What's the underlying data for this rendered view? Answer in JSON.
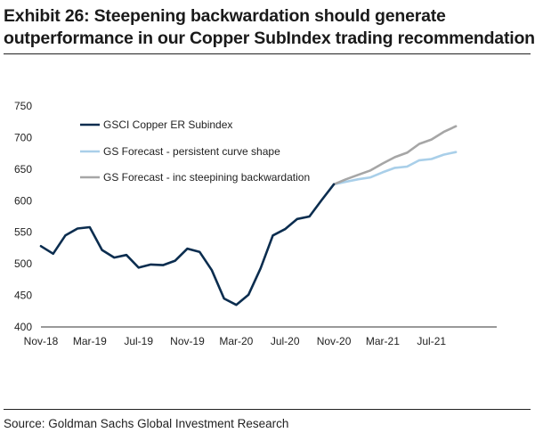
{
  "title": {
    "line1": "Exhibit 26: Steepening backwardation should generate",
    "line2": "outperformance in our Copper SubIndex trading recommendation"
  },
  "source": "Source: Goldman Sachs Global Investment Research",
  "chart_data": {
    "type": "line",
    "title": "Exhibit 26: Steepening backwardation should generate outperformance in our Copper SubIndex trading recommendation",
    "xlabel": "",
    "ylabel": "",
    "ylim": [
      400,
      750
    ],
    "yticks": [
      400,
      450,
      500,
      550,
      600,
      650,
      700,
      750
    ],
    "x_tick_labels": [
      "Nov-18",
      "Mar-19",
      "Jul-19",
      "Nov-19",
      "Mar-20",
      "Jul-20",
      "Nov-20",
      "Mar-21",
      "Jul-21"
    ],
    "grid": false,
    "legend_position": "top-left",
    "colors": {
      "GSCI Copper ER Subindex": "#0b2d4f",
      "GS Forecast - persistent curve shape": "#a9cfe9",
      "GS Forecast - inc steepining backwardation": "#a6a6a6"
    },
    "series": [
      {
        "name": "GSCI Copper ER Subindex",
        "x": [
          "Nov-18",
          "Dec-18",
          "Jan-19",
          "Feb-19",
          "Mar-19",
          "Apr-19",
          "May-19",
          "Jun-19",
          "Jul-19",
          "Aug-19",
          "Sep-19",
          "Oct-19",
          "Nov-19",
          "Dec-19",
          "Jan-20",
          "Feb-20",
          "Mar-20",
          "Apr-20",
          "May-20",
          "Jun-20",
          "Jul-20",
          "Aug-20",
          "Sep-20",
          "Oct-20",
          "Nov-20"
        ],
        "values": [
          528,
          516,
          545,
          556,
          558,
          522,
          510,
          514,
          494,
          499,
          498,
          505,
          524,
          519,
          490,
          445,
          435,
          451,
          493,
          545,
          555,
          571,
          575,
          601,
          626
        ]
      },
      {
        "name": "GS Forecast - persistent curve shape",
        "x": [
          "Nov-20",
          "Dec-20",
          "Jan-21",
          "Feb-21",
          "Mar-21",
          "Apr-21",
          "May-21",
          "Jun-21",
          "Jul-21",
          "Aug-21",
          "Sep-21"
        ],
        "values": [
          626,
          630,
          634,
          637,
          645,
          652,
          654,
          664,
          666,
          673,
          677
        ]
      },
      {
        "name": "GS Forecast - inc steepining backwardation",
        "x": [
          "Nov-20",
          "Dec-20",
          "Jan-21",
          "Feb-21",
          "Mar-21",
          "Apr-21",
          "May-21",
          "Jun-21",
          "Jul-21",
          "Aug-21",
          "Sep-21"
        ],
        "values": [
          626,
          634,
          641,
          648,
          659,
          669,
          676,
          690,
          697,
          709,
          718
        ]
      }
    ]
  }
}
